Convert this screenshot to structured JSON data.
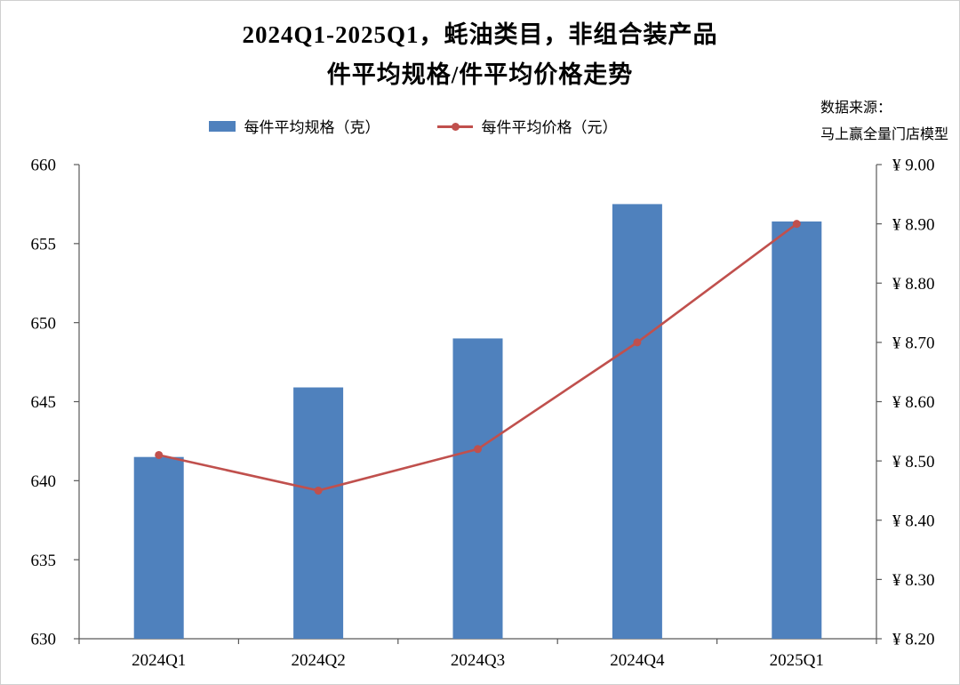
{
  "title_line1": "2024Q1-2025Q1，蚝油类目，非组合装产品",
  "title_line2": "件平均规格/件平均价格走势",
  "source_line1": "数据来源：",
  "source_line2": "马上赢全量门店模型",
  "legend": [
    {
      "label": "每件平均规格（克）",
      "type": "bar",
      "color": "#4F81BD"
    },
    {
      "label": "每件平均价格（元）",
      "type": "line",
      "color": "#C0504D"
    }
  ],
  "chart_data": {
    "type": "bar",
    "subtype": "bar+line dual-axis",
    "title": "2024Q1-2025Q1，蚝油类目，非组合装产品 件平均规格/件平均价格走势",
    "categories": [
      "2024Q1",
      "2024Q2",
      "2024Q3",
      "2024Q4",
      "2025Q1"
    ],
    "series": [
      {
        "name": "每件平均规格（克）",
        "type": "bar",
        "axis": "left",
        "color": "#4F81BD",
        "values": [
          641.5,
          645.9,
          649.0,
          657.5,
          656.4
        ]
      },
      {
        "name": "每件平均价格（元）",
        "type": "line",
        "axis": "right",
        "color": "#C0504D",
        "values": [
          8.51,
          8.45,
          8.52,
          8.7,
          8.9
        ]
      }
    ],
    "left_axis": {
      "min": 630,
      "max": 660,
      "step": 5,
      "tick_labels": [
        "660",
        "655",
        "650",
        "645",
        "640",
        "635",
        "630"
      ]
    },
    "right_axis": {
      "min": 8.2,
      "max": 9.0,
      "step": 0.1,
      "prefix": "¥ ",
      "tick_labels": [
        "¥ 9.00",
        "¥ 8.90",
        "¥ 8.80",
        "¥ 8.70",
        "¥ 8.60",
        "¥ 8.50",
        "¥ 8.40",
        "¥ 8.30",
        "¥ 8.20"
      ]
    },
    "grid": false,
    "legend_position": "top",
    "axis_color": "#595959",
    "text_color": "#000000"
  }
}
